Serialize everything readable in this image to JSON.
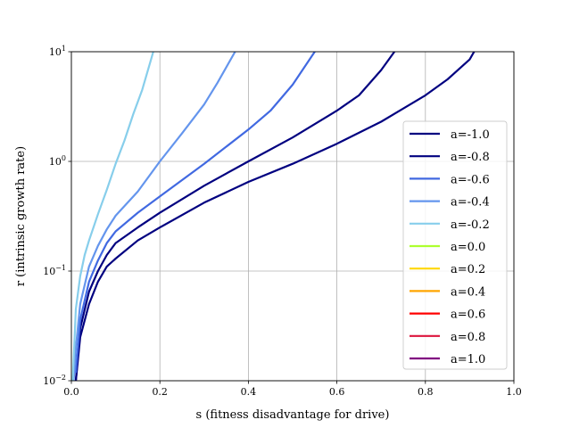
{
  "chart_data": {
    "type": "line",
    "title": "",
    "xlabel": "s (fitness disadvantage for drive)",
    "ylabel": "r (intrinsic growth rate)",
    "xlim": [
      0.0,
      1.0
    ],
    "ylim": [
      0.01,
      10
    ],
    "yscale": "log",
    "grid": true,
    "legend_position": "lower-right",
    "x_ticks": [
      {
        "value": 0.0,
        "label": "0.0"
      },
      {
        "value": 0.2,
        "label": "0.2"
      },
      {
        "value": 0.4,
        "label": "0.4"
      },
      {
        "value": 0.6,
        "label": "0.6"
      },
      {
        "value": 0.8,
        "label": "0.8"
      },
      {
        "value": 1.0,
        "label": "1.0"
      }
    ],
    "y_ticks": [
      {
        "value": 0.01,
        "base": "10",
        "exp": "−2"
      },
      {
        "value": 0.1,
        "base": "10",
        "exp": "−1"
      },
      {
        "value": 1,
        "base": "10",
        "exp": "0"
      },
      {
        "value": 10,
        "base": "10",
        "exp": "1"
      }
    ],
    "series": [
      {
        "name": "a=-1.0",
        "color": "#000080",
        "x": [
          0.01,
          0.02,
          0.04,
          0.06,
          0.08,
          0.1,
          0.15,
          0.2,
          0.3,
          0.4,
          0.5,
          0.6,
          0.7,
          0.8,
          0.85,
          0.9,
          0.91
        ],
        "y": [
          0.01,
          0.025,
          0.05,
          0.08,
          0.11,
          0.13,
          0.19,
          0.25,
          0.42,
          0.65,
          0.95,
          1.45,
          2.3,
          4.0,
          5.6,
          8.5,
          10
        ]
      },
      {
        "name": "a=-0.8",
        "color": "#000080",
        "x": [
          0.01,
          0.02,
          0.04,
          0.06,
          0.08,
          0.1,
          0.15,
          0.2,
          0.3,
          0.4,
          0.5,
          0.6,
          0.65,
          0.7,
          0.73
        ],
        "y": [
          0.01,
          0.03,
          0.065,
          0.1,
          0.14,
          0.18,
          0.25,
          0.34,
          0.6,
          1.0,
          1.65,
          2.9,
          4.0,
          6.8,
          10
        ]
      },
      {
        "name": "a=-0.6",
        "color": "#4169E1",
        "x": [
          0.01,
          0.02,
          0.04,
          0.06,
          0.08,
          0.1,
          0.15,
          0.2,
          0.3,
          0.4,
          0.45,
          0.5,
          0.55
        ],
        "y": [
          0.012,
          0.036,
          0.08,
          0.125,
          0.18,
          0.23,
          0.34,
          0.48,
          0.95,
          1.95,
          2.9,
          5.0,
          10
        ]
      },
      {
        "name": "a=-0.4",
        "color": "#6495ED",
        "x": [
          0.005,
          0.01,
          0.02,
          0.04,
          0.06,
          0.08,
          0.1,
          0.15,
          0.2,
          0.25,
          0.3,
          0.33,
          0.37
        ],
        "y": [
          0.01,
          0.02,
          0.05,
          0.11,
          0.17,
          0.24,
          0.32,
          0.53,
          1.0,
          1.8,
          3.3,
          5.2,
          10
        ]
      },
      {
        "name": "a=-0.2",
        "color": "#87CEEB",
        "x": [
          0.003,
          0.01,
          0.02,
          0.03,
          0.04,
          0.06,
          0.08,
          0.1,
          0.12,
          0.14,
          0.16,
          0.18,
          0.185
        ],
        "y": [
          0.01,
          0.045,
          0.09,
          0.14,
          0.19,
          0.33,
          0.55,
          0.95,
          1.55,
          2.7,
          4.5,
          8.5,
          10
        ]
      },
      {
        "name": "a=0.0",
        "color": "#ADFF2F",
        "x": [],
        "y": []
      },
      {
        "name": "a=0.2",
        "color": "#FFD700",
        "x": [],
        "y": []
      },
      {
        "name": "a=0.4",
        "color": "#FFA500",
        "x": [],
        "y": []
      },
      {
        "name": "a=0.6",
        "color": "#FF0000",
        "x": [],
        "y": []
      },
      {
        "name": "a=0.8",
        "color": "#DC143C",
        "x": [],
        "y": []
      },
      {
        "name": "a=1.0",
        "color": "#800080",
        "x": [],
        "y": []
      }
    ]
  }
}
